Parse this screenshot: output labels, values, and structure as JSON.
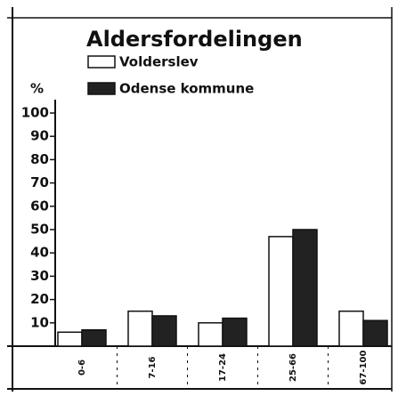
{
  "chart_data": {
    "type": "bar",
    "title": "Aldersfordelingen",
    "y_label": "%",
    "categories": [
      "0-6",
      "7-16",
      "17-24",
      "25-66",
      "67-100"
    ],
    "series": [
      {
        "name": "Volderslev",
        "color": "#ffffff",
        "values": [
          6,
          15,
          10,
          47,
          15
        ]
      },
      {
        "name": "Odense kommune",
        "color": "#222222",
        "values": [
          7,
          13,
          12,
          50,
          11
        ]
      }
    ],
    "ylim": [
      0,
      100
    ],
    "yticks": [
      10,
      20,
      30,
      40,
      50,
      60,
      70,
      80,
      90,
      100
    ]
  }
}
